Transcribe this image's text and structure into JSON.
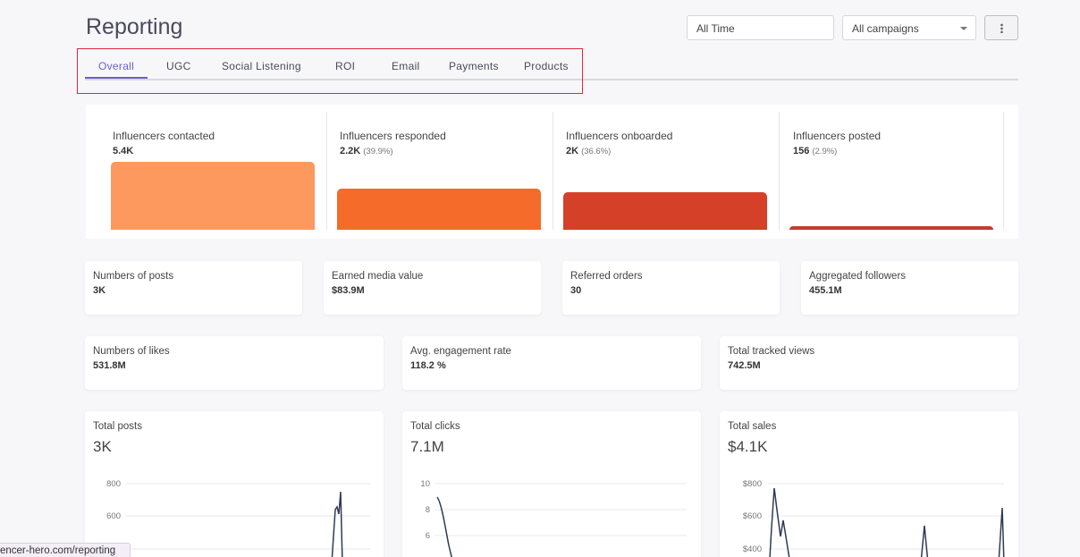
{
  "page": {
    "title": "Reporting"
  },
  "filters": {
    "date": "All Time",
    "campaign": "All campaigns"
  },
  "tabs": [
    {
      "label": "Overall",
      "active": true
    },
    {
      "label": "UGC"
    },
    {
      "label": "Social Listening"
    },
    {
      "label": "ROI"
    },
    {
      "label": "Email"
    },
    {
      "label": "Payments"
    },
    {
      "label": "Products"
    }
  ],
  "funnel": [
    {
      "label": "Influencers contacted",
      "value": "5.4K",
      "pct": "",
      "level": 1.0,
      "color": "#fd995f"
    },
    {
      "label": "Influencers responded",
      "value": "2.2K",
      "pct": "(39.9%)",
      "level": 0.6,
      "color": "#f56b2a"
    },
    {
      "label": "Influencers onboarded",
      "value": "2K",
      "pct": "(36.6%)",
      "level": 0.55,
      "color": "#d44128"
    },
    {
      "label": "Influencers posted",
      "value": "156",
      "pct": "(2.9%)",
      "level": 0.05,
      "color": "#c23d2f"
    }
  ],
  "stats_row1": [
    {
      "label": "Numbers of posts",
      "value": "3K"
    },
    {
      "label": "Earned media value",
      "value": "$83.9M"
    },
    {
      "label": "Referred orders",
      "value": "30"
    },
    {
      "label": "Aggregated followers",
      "value": "455.1M"
    }
  ],
  "stats_row2": [
    {
      "label": "Numbers of likes",
      "value": "531.8M"
    },
    {
      "label": "Avg. engagement rate",
      "value": "118.2 %"
    },
    {
      "label": "Total tracked views",
      "value": "742.5M"
    }
  ],
  "charts": [
    {
      "label": "Total posts",
      "value": "3K",
      "ticks": [
        "800",
        "600"
      ]
    },
    {
      "label": "Total clicks",
      "value": "7.1M",
      "ticks": [
        "10",
        "8",
        "6"
      ]
    },
    {
      "label": "Total sales",
      "value": "$4.1K",
      "ticks": [
        "$800",
        "$600",
        "$400"
      ]
    }
  ],
  "status": {
    "url": "encer-hero.com/reporting"
  },
  "colors": {
    "accent": "#6a5fc9",
    "highlight": "#e0263a",
    "line": "#2e3a55"
  }
}
